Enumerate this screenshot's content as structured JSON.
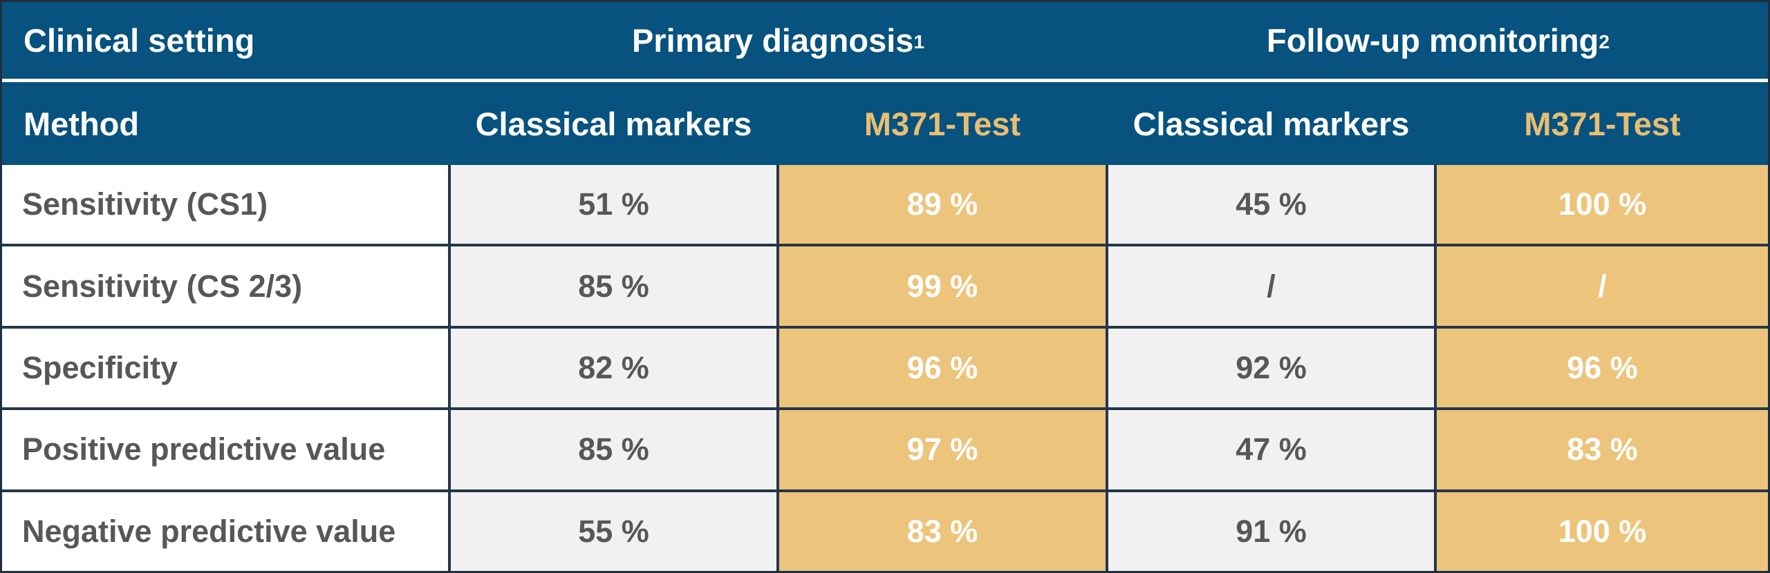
{
  "colors": {
    "header_blue": "#07527E",
    "gold_highlight": "#ECC47C",
    "gold_header_text": "#E8BE73",
    "light_gray_cell": "#F1F1F1",
    "cell_border": "#25364A",
    "dark_gray_text": "#575756",
    "white": "#FFFFFF"
  },
  "header": {
    "row1": {
      "clinical_setting": "Clinical setting",
      "primary": {
        "label": "Primary diagnosis",
        "sup": "1"
      },
      "followup": {
        "label": "Follow-up monitoring",
        "sup": "2"
      }
    },
    "row2": {
      "method": "Method",
      "primary_classical": "Classical markers",
      "primary_m371": "M371-Test",
      "followup_classical": "Classical markers",
      "followup_m371": "M371-Test"
    }
  },
  "chart_data": {
    "type": "table",
    "title": "",
    "column_groups": [
      {
        "label": "Clinical setting",
        "footnote_mark": "",
        "span": 1
      },
      {
        "label": "Primary diagnosis",
        "footnote_mark": "1",
        "span": 2
      },
      {
        "label": "Follow-up monitoring",
        "footnote_mark": "2",
        "span": 2
      }
    ],
    "columns": [
      "Method",
      "Classical markers",
      "M371-Test",
      "Classical markers",
      "M371-Test"
    ],
    "highlighted_columns": [
      "M371-Test"
    ],
    "rows": [
      {
        "method": "Sensitivity (CS1)",
        "primary_classical": "51 %",
        "primary_m371": "89 %",
        "followup_classical": "45 %",
        "followup_m371": "100 %"
      },
      {
        "method": "Sensitivity (CS 2/3)",
        "primary_classical": "85 %",
        "primary_m371": "99 %",
        "followup_classical": "/",
        "followup_m371": "/"
      },
      {
        "method": "Specificity",
        "primary_classical": "82 %",
        "primary_m371": "96 %",
        "followup_classical": "92 %",
        "followup_m371": "96 %"
      },
      {
        "method": "Positive predictive value",
        "primary_classical": "85 %",
        "primary_m371": "97 %",
        "followup_classical": "47 %",
        "followup_m371": "83 %"
      },
      {
        "method": "Negative predictive value",
        "primary_classical": "55 %",
        "primary_m371": "83 %",
        "followup_classical": "91 %",
        "followup_m371": "100 %"
      }
    ]
  }
}
